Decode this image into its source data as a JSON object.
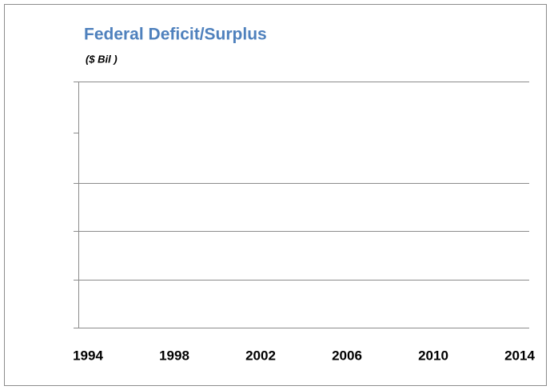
{
  "chart_data": {
    "type": "line",
    "title": "Federal Deficit/Surplus",
    "subtitle": "($ Bil )",
    "categories": [
      "1994",
      "1998",
      "2002",
      "2006",
      "2010",
      "2014"
    ]
  }
}
